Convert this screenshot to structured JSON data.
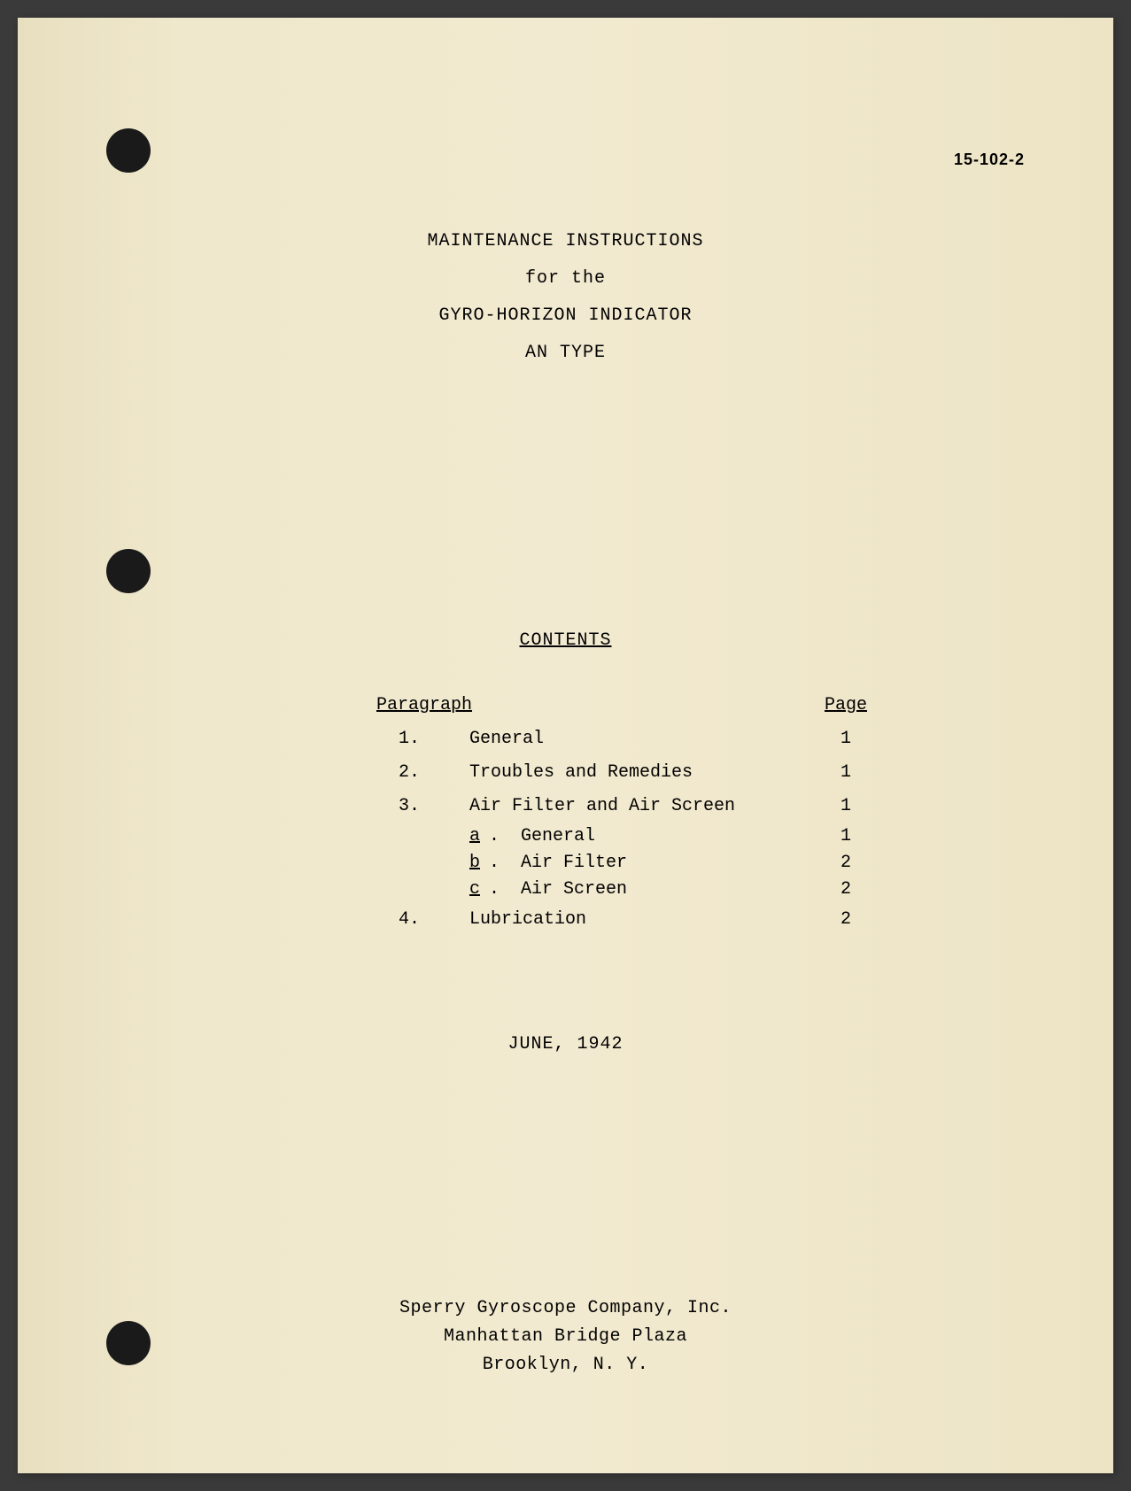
{
  "document_number": "15-102-2",
  "title": {
    "line1": "MAINTENANCE INSTRUCTIONS",
    "line2": "for the",
    "line3": "GYRO-HORIZON INDICATOR",
    "line4": "AN TYPE"
  },
  "contents": {
    "header": "CONTENTS",
    "col_paragraph": "Paragraph",
    "col_page": "Page",
    "items": [
      {
        "num": "1.",
        "title": "General",
        "page": "1"
      },
      {
        "num": "2.",
        "title": "Troubles and Remedies",
        "page": "1"
      },
      {
        "num": "3.",
        "title": "Air Filter and Air Screen",
        "page": "1"
      }
    ],
    "sub_items": [
      {
        "letter": "a",
        "dot": ".",
        "title": "General",
        "page": "1"
      },
      {
        "letter": "b",
        "dot": ".",
        "title": "Air Filter",
        "page": "2"
      },
      {
        "letter": "c",
        "dot": ".",
        "title": "Air Screen",
        "page": "2"
      }
    ],
    "item4": {
      "num": "4.",
      "title": "Lubrication",
      "page": "2"
    }
  },
  "date": "JUNE, 1942",
  "footer": {
    "line1": "Sperry Gyroscope Company, Inc.",
    "line2": "Manhattan Bridge Plaza",
    "line3": "Brooklyn, N. Y."
  }
}
